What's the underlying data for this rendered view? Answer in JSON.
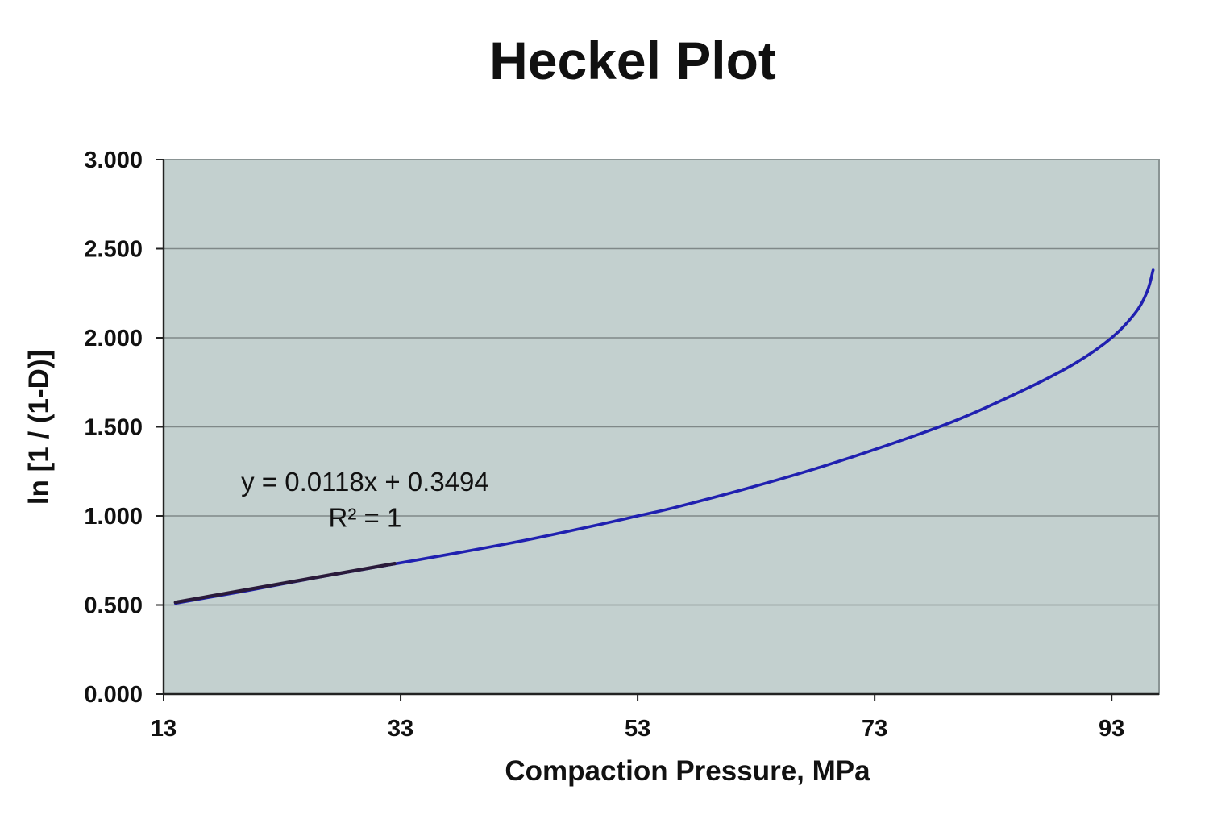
{
  "chart_data": {
    "type": "line",
    "title": "Heckel Plot",
    "xlabel": "Compaction Pressure, MPa",
    "ylabel": "ln [1 / (1-D)]",
    "xlim": [
      13,
      97
    ],
    "ylim": [
      0,
      3
    ],
    "x_ticks": [
      13,
      33,
      53,
      73,
      93
    ],
    "x_tick_labels": [
      "13",
      "33",
      "53",
      "73",
      "93"
    ],
    "y_ticks": [
      0,
      0.5,
      1,
      1.5,
      2,
      2.5,
      3
    ],
    "y_tick_labels": [
      "0.000",
      "0.500",
      "1.000",
      "1.500",
      "2.000",
      "2.500",
      "3.000"
    ],
    "grid": true,
    "plot_background": "#c3d0cf",
    "series": [
      {
        "color": "#2020b0",
        "x": [
          14,
          20,
          26,
          32,
          38,
          44,
          50,
          53,
          56,
          62,
          68,
          74,
          80,
          86,
          90,
          93,
          95,
          96,
          96.5
        ],
        "y": [
          0.51,
          0.58,
          0.655,
          0.725,
          0.795,
          0.87,
          0.955,
          1.0,
          1.045,
          1.15,
          1.265,
          1.395,
          1.54,
          1.72,
          1.86,
          2.0,
          2.14,
          2.26,
          2.38
        ]
      },
      {
        "color": "#2a1a3a",
        "x": [
          14,
          32.5
        ],
        "y": [
          0.515,
          0.733
        ]
      }
    ],
    "annotations": [
      {
        "text": "y = 0.0118x + 0.3494",
        "x": 30,
        "y": 1.14
      },
      {
        "text": "R² = 1",
        "x": 30,
        "y": 0.94
      }
    ]
  }
}
